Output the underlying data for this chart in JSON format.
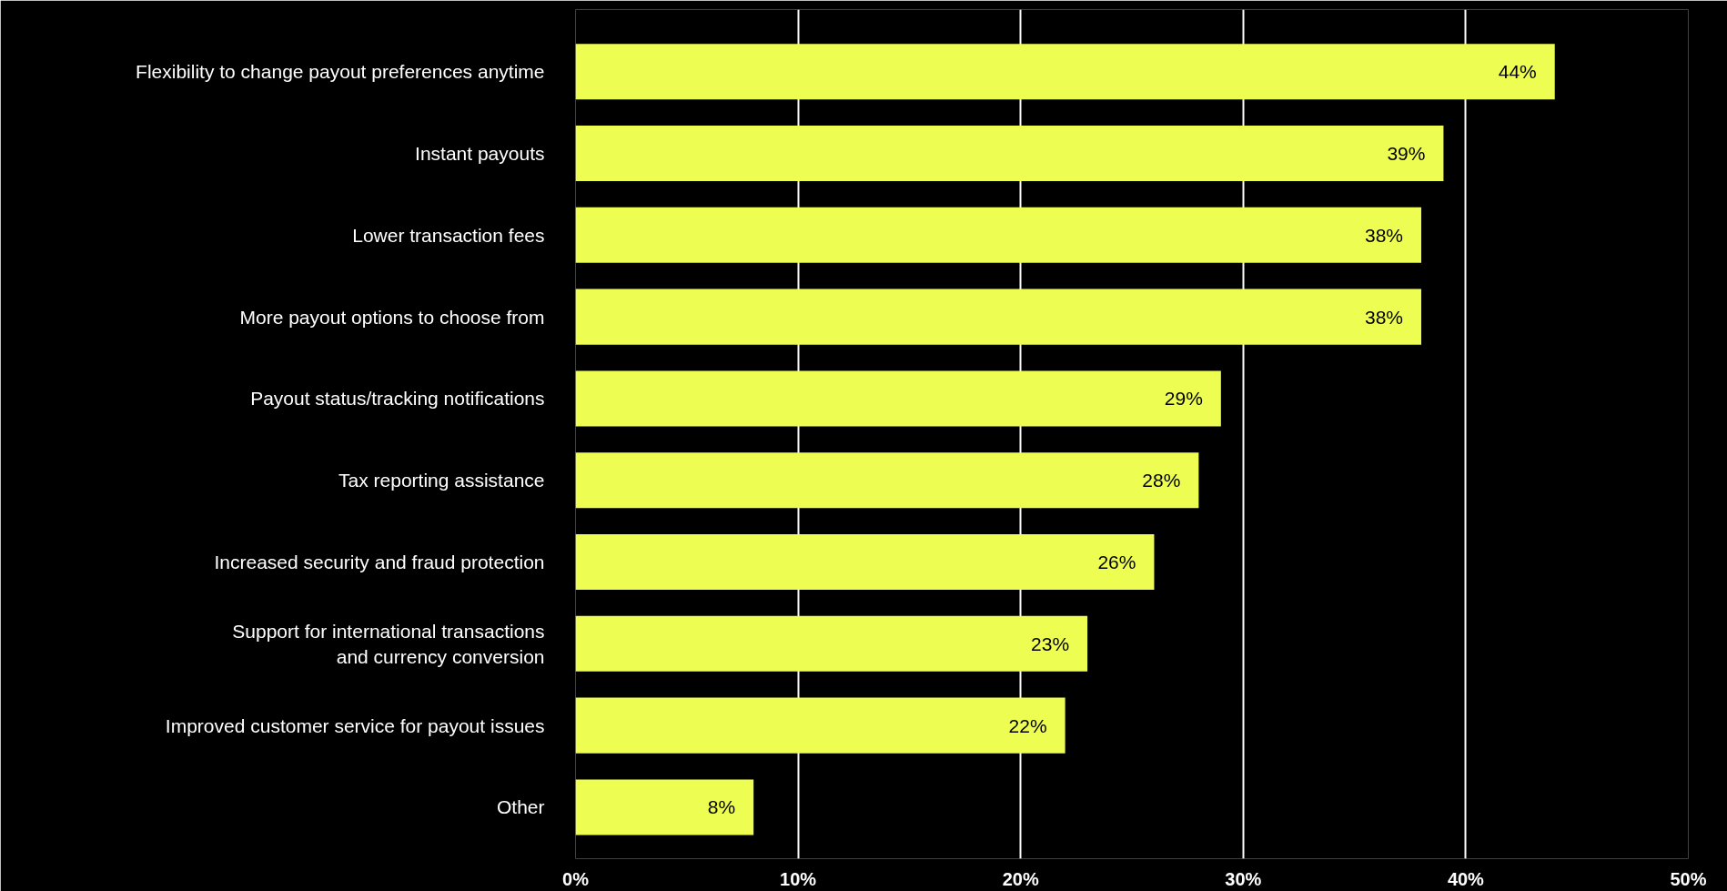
{
  "chart_data": {
    "type": "bar",
    "orientation": "horizontal",
    "categories": [
      "Flexibility to change payout preferences anytime",
      "Instant payouts",
      "Lower transaction fees",
      "More payout options to choose from",
      "Payout status/tracking notifications",
      "Tax reporting assistance",
      "Increased security and fraud protection",
      "Support for international transactions\nand currency conversion",
      "Improved customer service for payout issues",
      "Other"
    ],
    "values": [
      44,
      39,
      38,
      38,
      29,
      28,
      26,
      23,
      22,
      8
    ],
    "value_labels": [
      "44%",
      "39%",
      "38%",
      "38%",
      "29%",
      "28%",
      "26%",
      "23%",
      "22%",
      "8%"
    ],
    "color": "#eefd52",
    "grid": "x",
    "xlim": [
      0,
      50
    ],
    "xticks": [
      {
        "value": 0,
        "label": "0%"
      },
      {
        "value": 10,
        "label": "10%"
      },
      {
        "value": 20,
        "label": "20%"
      },
      {
        "value": 30,
        "label": "30%"
      },
      {
        "value": 40,
        "label": "40%"
      },
      {
        "value": 50,
        "label": "50%"
      }
    ]
  }
}
